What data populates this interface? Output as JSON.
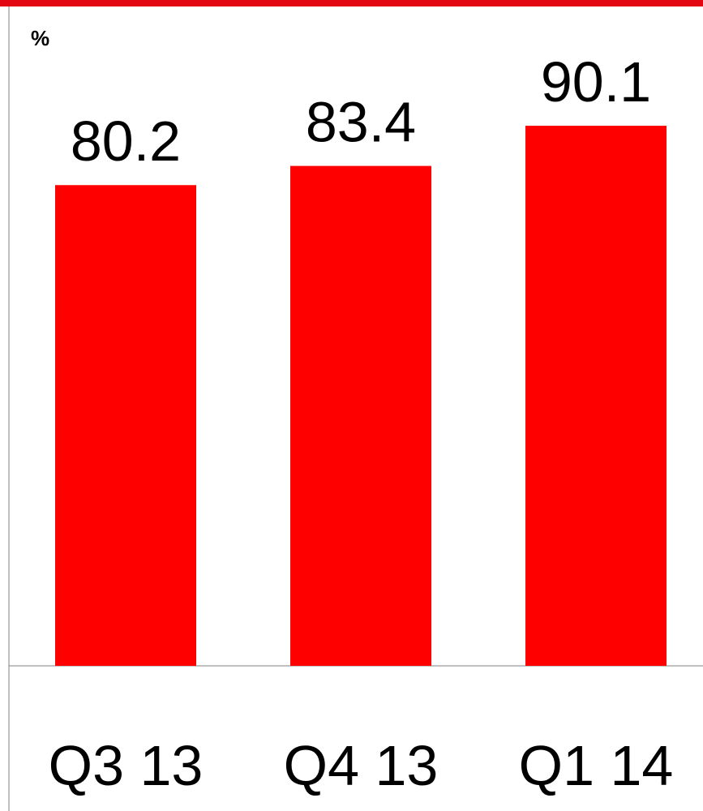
{
  "chart_data": {
    "type": "bar",
    "categories": [
      "Q3 13",
      "Q4 13",
      "Q1 14"
    ],
    "values": [
      80.2,
      83.4,
      90.1
    ],
    "data_labels": [
      "80.2",
      "83.4",
      "90.1"
    ],
    "unit_label": "%",
    "bar_color": "#FF0000",
    "accent_color": "#E30613",
    "ylim": [
      0,
      110
    ],
    "grid": false,
    "legend": "none"
  }
}
